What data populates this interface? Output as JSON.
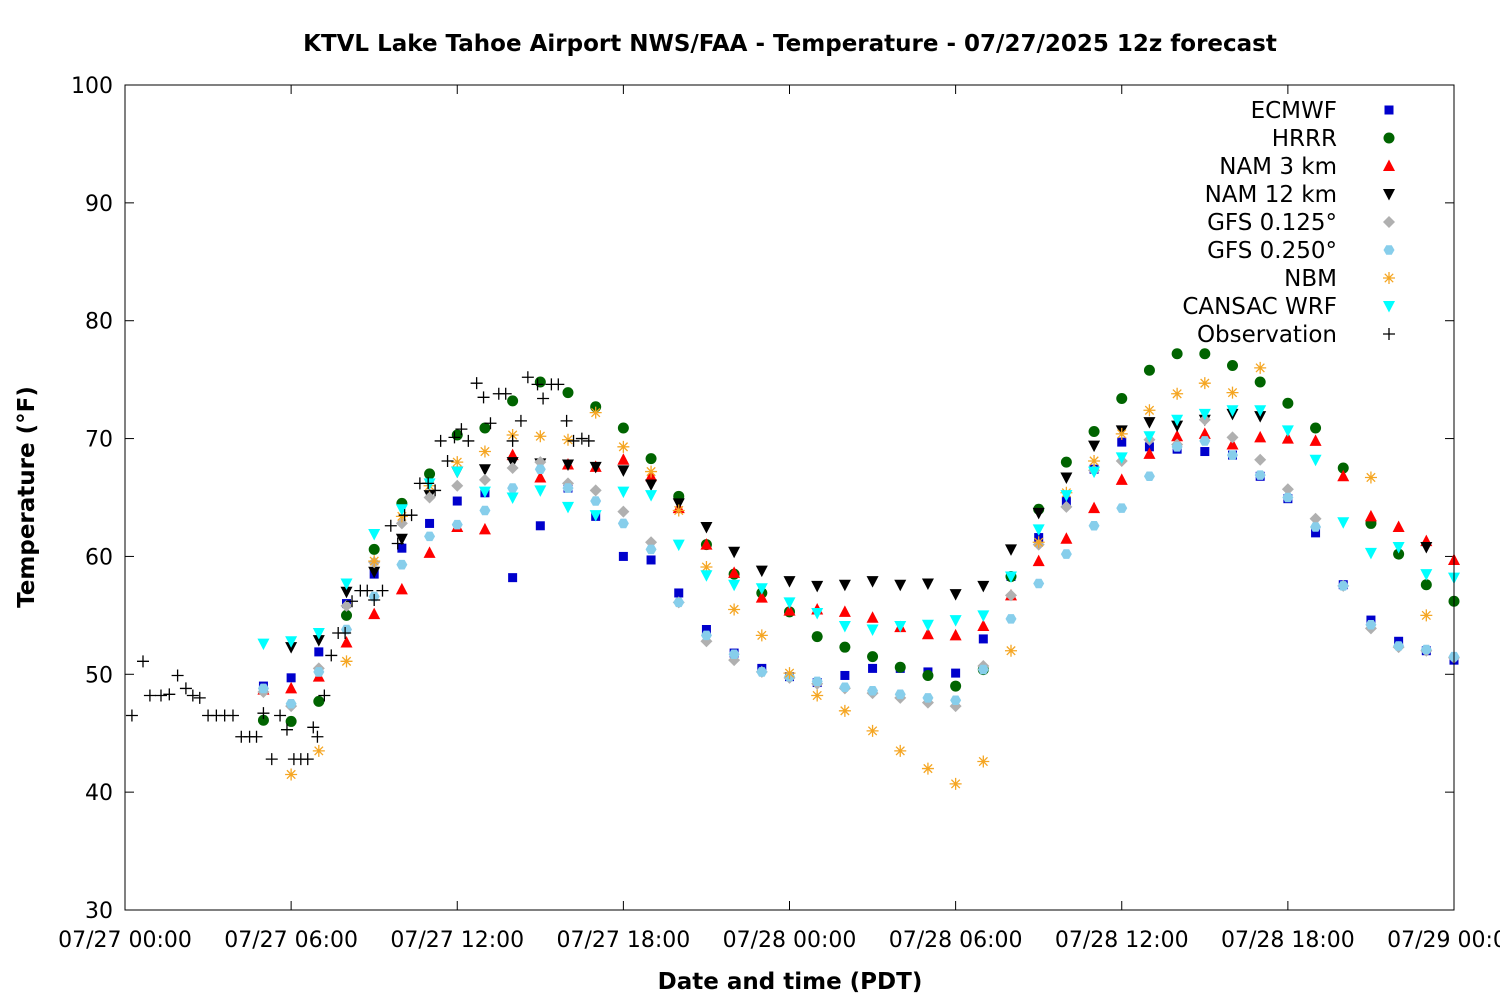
{
  "chart_data": {
    "type": "scatter",
    "title": "KTVL Lake Tahoe Airport NWS/FAA - Temperature - 07/27/2025 12z forecast",
    "xlabel": "Date and time (PDT)",
    "ylabel": "Temperature (°F)",
    "xlim": [
      0,
      48
    ],
    "ylim": [
      30,
      100
    ],
    "x_units": "hours since 07/27 00:00 PDT",
    "x_ticks": [
      {
        "value": 0,
        "label": "07/27 00:00"
      },
      {
        "value": 6,
        "label": "07/27 06:00"
      },
      {
        "value": 12,
        "label": "07/27 12:00"
      },
      {
        "value": 18,
        "label": "07/27 18:00"
      },
      {
        "value": 24,
        "label": "07/28 00:00"
      },
      {
        "value": 30,
        "label": "07/28 06:00"
      },
      {
        "value": 36,
        "label": "07/28 12:00"
      },
      {
        "value": 42,
        "label": "07/28 18:00"
      },
      {
        "value": 48,
        "label": "07/29 00:00"
      }
    ],
    "y_ticks": [
      30,
      40,
      50,
      60,
      70,
      80,
      90,
      100
    ],
    "grid": false,
    "legend": "top-right",
    "series": [
      {
        "name": "ECMWF",
        "marker": "square",
        "color": "#0000cc",
        "x": [
          5,
          6,
          7,
          8,
          9,
          10,
          11,
          12,
          13,
          14,
          15,
          16,
          17,
          18,
          19,
          20,
          21,
          22,
          23,
          24,
          25,
          26,
          27,
          28,
          29,
          30,
          31,
          32,
          33,
          34,
          35,
          36,
          37,
          38,
          39,
          40,
          41,
          42,
          43,
          44,
          45,
          46,
          47,
          48
        ],
        "y": [
          49,
          49.7,
          51.9,
          56,
          58.5,
          60.7,
          62.8,
          64.7,
          65.4,
          58.2,
          62.6,
          65.8,
          63.4,
          60,
          59.7,
          56.9,
          53.8,
          51.8,
          50.5,
          49.8,
          49.3,
          49.9,
          50.5,
          50.5,
          50.2,
          50.1,
          53,
          58.3,
          61.6,
          64.7,
          67.4,
          69.7,
          69.3,
          69.1,
          68.9,
          68.6,
          66.8,
          64.9,
          62,
          57.6,
          54.6,
          52.8,
          52,
          51.2
        ]
      },
      {
        "name": "HRRR",
        "marker": "circle",
        "color": "#006400",
        "x": [
          5,
          6,
          7,
          8,
          9,
          10,
          11,
          12,
          13,
          14,
          15,
          16,
          17,
          18,
          19,
          20,
          21,
          22,
          23,
          24,
          25,
          26,
          27,
          28,
          29,
          30,
          31,
          32,
          33,
          34,
          35,
          36,
          37,
          38,
          39,
          40,
          41,
          42,
          43,
          44,
          45,
          46,
          47,
          48
        ],
        "y": [
          46.1,
          46,
          47.7,
          55,
          60.6,
          64.5,
          67,
          70.3,
          70.9,
          73.2,
          74.8,
          73.9,
          72.7,
          70.9,
          68.3,
          65.1,
          61,
          58.5,
          56.9,
          55.3,
          53.2,
          52.3,
          51.5,
          50.6,
          49.9,
          49,
          50.4,
          58.3,
          64,
          68,
          70.6,
          73.4,
          75.8,
          77.2,
          77.2,
          76.2,
          74.8,
          73,
          70.9,
          67.5,
          62.8,
          60.2,
          57.6,
          56.2
        ]
      },
      {
        "name": "NAM 3 km",
        "marker": "triangle-up",
        "color": "#ff0000",
        "x": [
          5,
          6,
          7,
          8,
          9,
          10,
          11,
          12,
          13,
          14,
          15,
          16,
          17,
          18,
          19,
          20,
          21,
          22,
          23,
          24,
          25,
          26,
          27,
          28,
          29,
          30,
          31,
          32,
          33,
          34,
          35,
          36,
          37,
          38,
          39,
          40,
          41,
          42,
          43,
          44,
          45,
          46,
          47,
          48
        ],
        "y": [
          48.7,
          48.8,
          49.8,
          52.7,
          55.1,
          57.2,
          60.3,
          62.5,
          62.3,
          68.6,
          66.7,
          67.8,
          67.6,
          68.2,
          66.8,
          64.1,
          61,
          58.6,
          56.5,
          55.4,
          55.5,
          55.3,
          54.8,
          54,
          53.4,
          53.3,
          54.1,
          56.7,
          59.6,
          61.5,
          64.1,
          66.5,
          68.7,
          70.2,
          70.4,
          69.5,
          70.1,
          70,
          69.8,
          66.8,
          63.4,
          62.5,
          61.3,
          59.7
        ]
      },
      {
        "name": "NAM 12 km",
        "marker": "triangle-down",
        "color": "#000000",
        "x": [
          6,
          7,
          8,
          9,
          10,
          11,
          12,
          13,
          14,
          15,
          16,
          17,
          18,
          19,
          20,
          21,
          22,
          23,
          24,
          25,
          26,
          27,
          28,
          29,
          30,
          31,
          32,
          33,
          34,
          35,
          36,
          37,
          38,
          39,
          40,
          41,
          42,
          43,
          44,
          45,
          46,
          47
        ],
        "y": [
          52.3,
          52.9,
          57,
          58.7,
          61.5,
          65.2,
          67.2,
          67.4,
          68,
          67.9,
          67.8,
          67.6,
          67.3,
          66.1,
          64.5,
          62.5,
          60.4,
          58.8,
          57.9,
          57.5,
          57.6,
          57.9,
          57.6,
          57.7,
          56.8,
          57.5,
          60.6,
          63.7,
          66.7,
          69.4,
          70.7,
          71.4,
          71.1,
          71.6,
          72.1,
          71.9,
          null,
          null,
          null,
          null,
          null,
          60.8
        ]
      },
      {
        "name": "GFS 0.125°",
        "marker": "diamond",
        "color": "#b0b0b0",
        "x": [
          5,
          6,
          7,
          8,
          9,
          10,
          11,
          12,
          13,
          14,
          15,
          16,
          17,
          18,
          19,
          20,
          21,
          22,
          23,
          24,
          25,
          26,
          27,
          28,
          29,
          30,
          31,
          32,
          33,
          34,
          35,
          36,
          37,
          38,
          39,
          40,
          41,
          42,
          43,
          44,
          45,
          46,
          47,
          48
        ],
        "y": [
          48.5,
          47.3,
          50.5,
          55.8,
          59.5,
          62.8,
          65,
          66,
          66.5,
          67.5,
          68,
          66.2,
          65.6,
          63.8,
          61.2,
          56.1,
          52.8,
          51.2,
          50.2,
          49.7,
          49.2,
          48.8,
          48.4,
          48,
          47.6,
          47.3,
          50.7,
          56.7,
          61,
          64.2,
          67.3,
          68.1,
          69.9,
          69.5,
          71.6,
          70.1,
          68.2,
          65.7,
          63.2,
          57.5,
          53.9,
          52.3,
          52,
          51.4
        ]
      },
      {
        "name": "GFS 0.250°",
        "marker": "hexagon",
        "color": "#87ceeb",
        "x": [
          5,
          6,
          7,
          8,
          9,
          10,
          11,
          12,
          13,
          14,
          15,
          16,
          17,
          18,
          19,
          20,
          21,
          22,
          23,
          24,
          25,
          26,
          27,
          28,
          29,
          30,
          31,
          32,
          33,
          34,
          35,
          36,
          37,
          38,
          39,
          40,
          41,
          42,
          43,
          44,
          45,
          46,
          47,
          48
        ],
        "y": [
          48.8,
          47.5,
          50.2,
          53.8,
          56.6,
          59.3,
          61.7,
          62.7,
          63.9,
          65.8,
          67.4,
          65.8,
          64.7,
          62.8,
          60.6,
          56.1,
          53.3,
          51.7,
          50.2,
          49.8,
          49.4,
          48.9,
          48.6,
          48.3,
          48,
          47.8,
          50.4,
          54.7,
          57.7,
          60.2,
          62.6,
          64.1,
          66.8,
          69.3,
          69.8,
          68.6,
          66.9,
          65,
          62.5,
          57.5,
          54.2,
          52.4,
          52.1,
          51.5
        ]
      },
      {
        "name": "NBM",
        "marker": "asterisk",
        "color": "#f5a623",
        "x": [
          6,
          7,
          8,
          9,
          10,
          11,
          12,
          13,
          14,
          15,
          16,
          17,
          18,
          19,
          20,
          21,
          22,
          23,
          24,
          25,
          26,
          27,
          28,
          29,
          30,
          31,
          32,
          33,
          34,
          35,
          36,
          37,
          38,
          39,
          40,
          41,
          42,
          43,
          44,
          45,
          46,
          47
        ],
        "y": [
          41.5,
          43.5,
          51.1,
          59.6,
          63.4,
          66,
          68,
          68.9,
          70.3,
          70.2,
          69.9,
          72.2,
          69.3,
          67.2,
          63.9,
          59.1,
          55.5,
          53.3,
          50.1,
          48.2,
          46.9,
          45.2,
          43.5,
          42,
          40.7,
          42.6,
          52,
          61.2,
          65.4,
          68.1,
          70.4,
          72.4,
          73.8,
          74.7,
          73.9,
          76,
          null,
          null,
          null,
          66.7,
          null,
          55
        ]
      },
      {
        "name": "CANSAC WRF",
        "marker": "triangle-down",
        "color": "#00ffff",
        "x": [
          5,
          6,
          7,
          8,
          9,
          10,
          11,
          12,
          13,
          14,
          15,
          16,
          17,
          18,
          19,
          20,
          21,
          22,
          23,
          24,
          25,
          26,
          27,
          28,
          29,
          30,
          31,
          32,
          33,
          34,
          35,
          36,
          37,
          38,
          39,
          40,
          41,
          42,
          43,
          44,
          45,
          46,
          47,
          48
        ],
        "y": [
          52.6,
          52.8,
          53.5,
          57.7,
          61.9,
          64,
          66.2,
          67.2,
          65.5,
          65,
          65.6,
          64.2,
          63.5,
          65.5,
          65.2,
          61,
          58.4,
          57.6,
          57.3,
          56.1,
          55.2,
          54.1,
          53.8,
          54.1,
          54.2,
          54.6,
          55,
          58.3,
          62.3,
          65.2,
          67.2,
          68.4,
          70.2,
          71.6,
          72.1,
          72.4,
          72.4,
          70.7,
          68.2,
          62.9,
          60.3,
          60.8,
          58.5,
          58.2
        ]
      },
      {
        "name": "Observation",
        "marker": "plus",
        "color": "#000000",
        "x": [
          0.25,
          0.65,
          0.9,
          1.3,
          1.6,
          1.9,
          2.2,
          2.45,
          2.7,
          3,
          3.3,
          3.6,
          3.9,
          4.2,
          4.5,
          4.75,
          5,
          5.3,
          5.6,
          5.85,
          6.1,
          6.35,
          6.6,
          6.8,
          6.95,
          7.2,
          7.45,
          7.7,
          7.95,
          8.2,
          8.5,
          8.75,
          9,
          9.3,
          9.6,
          9.85,
          10.1,
          10.35,
          10.65,
          10.95,
          11.2,
          11.4,
          11.65,
          11.9,
          12.15,
          12.4,
          12.7,
          12.95,
          13.2,
          13.5,
          13.75,
          14,
          14.3,
          14.55,
          14.9,
          15.1,
          15.4,
          15.65,
          15.95,
          16.2,
          16.5,
          16.75
        ],
        "y": [
          46.5,
          51.1,
          48.2,
          48.2,
          48.3,
          49.9,
          48.8,
          48.2,
          48,
          46.5,
          46.5,
          46.5,
          46.5,
          44.7,
          44.7,
          44.7,
          46.7,
          42.8,
          46.5,
          45.3,
          42.8,
          42.8,
          42.8,
          45.5,
          44.7,
          48.2,
          51.6,
          53.5,
          53.5,
          56.2,
          57.1,
          57.1,
          56.3,
          57.1,
          62.6,
          61.1,
          63.5,
          63.5,
          66.2,
          66.2,
          65.6,
          69.8,
          68.1,
          70.1,
          70.8,
          69.8,
          74.7,
          73.5,
          71.3,
          73.8,
          73.8,
          69.8,
          71.5,
          75.2,
          74.6,
          73.4,
          74.6,
          74.6,
          71.5,
          69.8,
          70,
          69.8
        ]
      }
    ]
  }
}
